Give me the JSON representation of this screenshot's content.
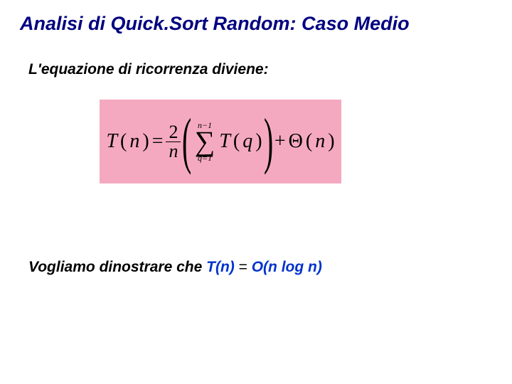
{
  "title": "Analisi di Quick.Sort Random: Caso Medio",
  "subtitle": "L'equazione di ricorrenza diviene:",
  "formula": {
    "lhs_T": "T",
    "lhs_n_open": "(",
    "lhs_n": "n",
    "lhs_n_close": ")",
    "eq": " = ",
    "frac_num": "2",
    "frac_den": "n",
    "sum_upper": "n−1",
    "sum_sigma": "∑",
    "sum_lower": "q=1",
    "inner_T": "T",
    "inner_open": "(",
    "inner_q": "q",
    "inner_close": ")",
    "plus": " + ",
    "theta": "Θ",
    "theta_open": "(",
    "theta_n": "n",
    "theta_close": ")",
    "background_color": "#f5a9c0"
  },
  "statement": {
    "prefix": "Vogliamo dinostrare che ",
    "tn": "T(n)",
    "eq": " = ",
    "bigO": "O(n log n)"
  },
  "colors": {
    "title": "#000080",
    "text": "#000000",
    "highlight": "#0033cc"
  }
}
